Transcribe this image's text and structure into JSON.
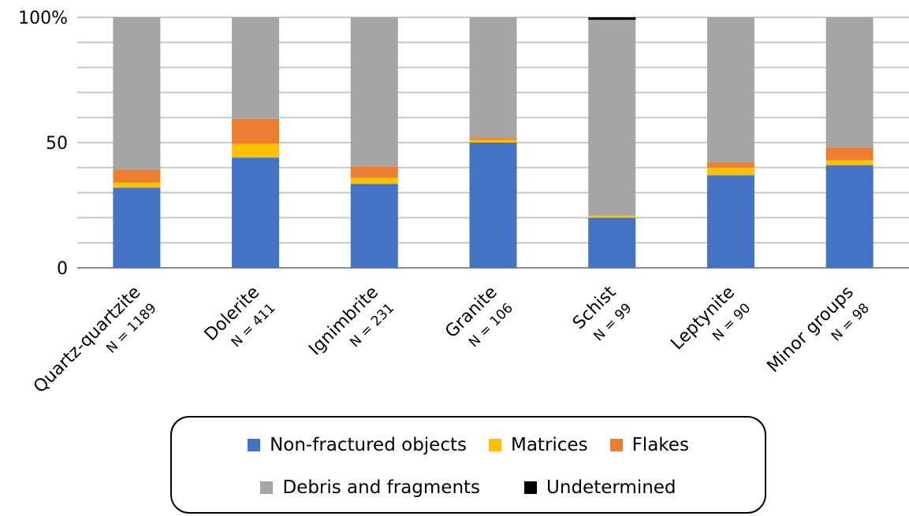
{
  "chart_data": {
    "type": "bar",
    "stacked": true,
    "percent": true,
    "categories": [
      {
        "name": "Quartz-quartzite",
        "n": "N = 1189"
      },
      {
        "name": "Dolerite",
        "n": "N = 411"
      },
      {
        "name": "Ignimbrite",
        "n": "N = 231"
      },
      {
        "name": "Granite",
        "n": "N = 106"
      },
      {
        "name": "Schist",
        "n": "N = 99"
      },
      {
        "name": "Leptynite",
        "n": "N = 90"
      },
      {
        "name": "Minor groups",
        "n": "N = 98"
      }
    ],
    "series": [
      {
        "name": "Non-fractured objects",
        "color": "#4472C4",
        "values": [
          32,
          44,
          33.5,
          50,
          20,
          37,
          41
        ]
      },
      {
        "name": "Matrices",
        "color": "#FFC000",
        "values": [
          2,
          5.5,
          2.5,
          1,
          0.8,
          3,
          2
        ]
      },
      {
        "name": "Flakes",
        "color": "#ED7D31",
        "values": [
          5,
          10,
          4.5,
          0.8,
          0,
          2,
          5
        ]
      },
      {
        "name": "Debris and fragments",
        "color": "#A5A5A5",
        "values": [
          61,
          40.5,
          59.5,
          48.2,
          78.2,
          58,
          52
        ]
      },
      {
        "name": "Undetermined",
        "color": "#000000",
        "values": [
          0,
          0,
          0,
          0,
          1,
          0,
          0
        ]
      }
    ],
    "yticks": [
      {
        "value": 0,
        "label": "0"
      },
      {
        "value": 50,
        "label": "50"
      },
      {
        "value": 100,
        "label": "100%"
      }
    ],
    "ylim": [
      0,
      100
    ],
    "grid": true,
    "legend_position": "bottom",
    "title": "",
    "xlabel": "",
    "ylabel": ""
  }
}
